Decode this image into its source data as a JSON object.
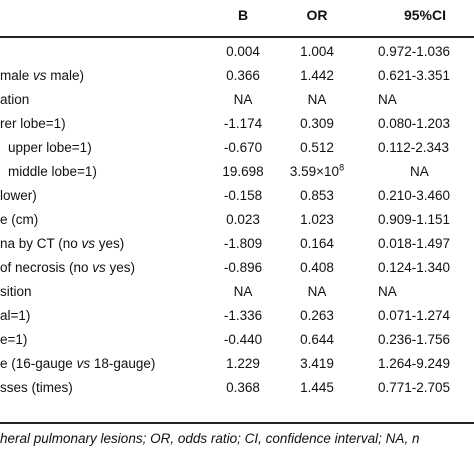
{
  "table": {
    "headers": {
      "b": "B",
      "or": "OR",
      "ci": "95%CI"
    },
    "rows": [
      {
        "label": "",
        "b": "0.004",
        "or": "1.004",
        "ci": "0.972-1.036"
      },
      {
        "label": "male vs male)",
        "b": "0.366",
        "or": "1.442",
        "ci": "0.621-3.351"
      },
      {
        "label": "ation",
        "b": "NA",
        "or": "NA",
        "ci": "NA"
      },
      {
        "label": "rer lobe=1)",
        "b": "-1.174",
        "or": "0.309",
        "ci": "0.080-1.203"
      },
      {
        "label": "upper lobe=1)",
        "b": "-0.670",
        "or": "0.512",
        "ci": "0.112-2.343"
      },
      {
        "label": "middle lobe=1)",
        "b": "19.698",
        "or_base": "3.59×10",
        "or_exp": "8",
        "ci": "NA"
      },
      {
        "label": "lower)",
        "b": "-0.158",
        "or": "0.853",
        "ci": "0.210-3.460"
      },
      {
        "label": "e (cm)",
        "b": "0.023",
        "or": "1.023",
        "ci": "0.909-1.151"
      },
      {
        "label": "na by CT (no vs yes)",
        "b": "-1.809",
        "or": "0.164",
        "ci": "0.018-1.497"
      },
      {
        "label": "of necrosis (no vs yes)",
        "b": "-0.896",
        "or": "0.408",
        "ci": "0.124-1.340"
      },
      {
        "label": "sition",
        "b": "NA",
        "or": "NA",
        "ci": "NA"
      },
      {
        "label": "al=1)",
        "b": "-1.336",
        "or": "0.263",
        "ci": "0.071-1.274"
      },
      {
        "label": "e=1)",
        "b": "-0.440",
        "or": "0.644",
        "ci": "0.236-1.756"
      },
      {
        "label": "e (16-gauge vs 18-gauge)",
        "b": "1.229",
        "or": "3.419",
        "ci": "1.264-9.249"
      },
      {
        "label": "sses (times)",
        "b": "0.368",
        "or": "1.445",
        "ci": "0.771-2.705"
      }
    ]
  },
  "footnote": "heral pulmonary lesions; OR, odds ratio; CI, confidence interval; NA, n"
}
